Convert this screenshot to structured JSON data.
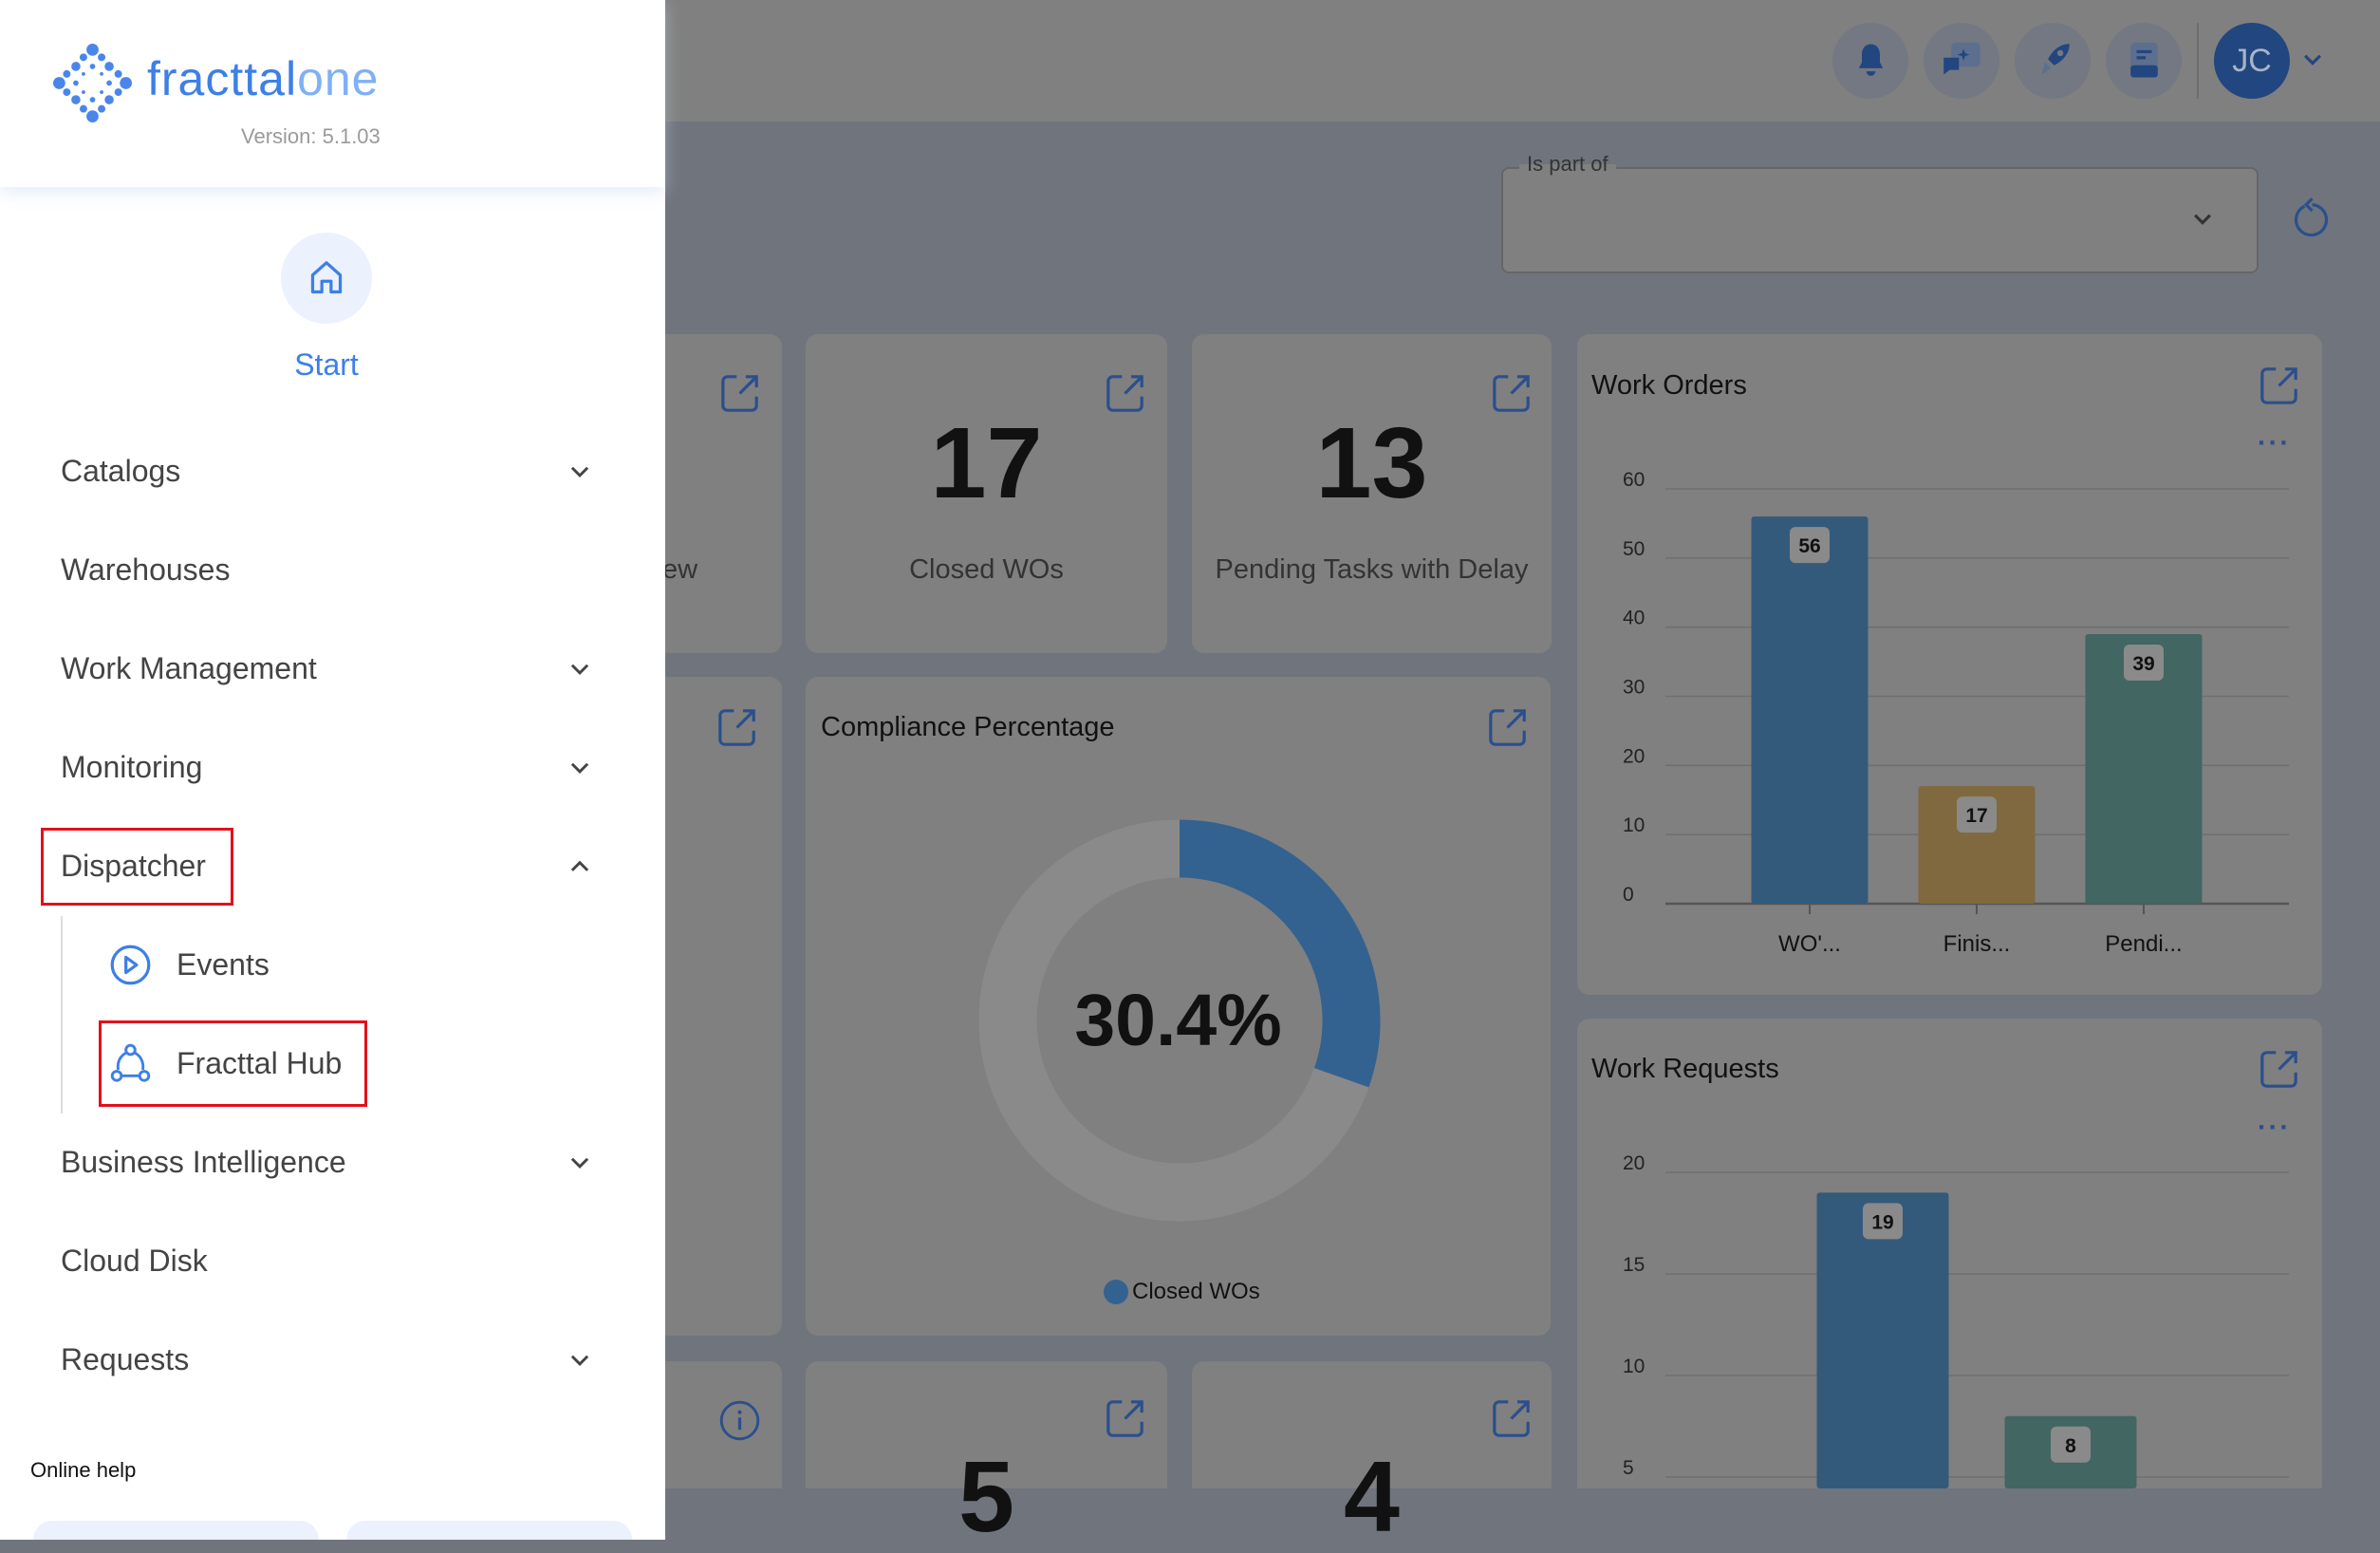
{
  "app": {
    "brand_main": "fracttal",
    "brand_accent": "one",
    "version": "Version: 5.1.03"
  },
  "sidebar": {
    "start_label": "Start",
    "items": [
      {
        "label": "Catalogs",
        "expandable": true
      },
      {
        "label": "Warehouses",
        "expandable": false
      },
      {
        "label": "Work Management",
        "expandable": true
      },
      {
        "label": "Monitoring",
        "expandable": true
      },
      {
        "label": "Dispatcher",
        "expandable": true,
        "expanded": true,
        "highlighted": true
      },
      {
        "label": "Business Intelligence",
        "expandable": true
      },
      {
        "label": "Cloud Disk",
        "expandable": false
      },
      {
        "label": "Requests",
        "expandable": true
      }
    ],
    "dispatcher_children": [
      {
        "label": "Events",
        "icon": "play-circle-icon"
      },
      {
        "label": "Fracttal Hub",
        "icon": "hub-network-icon",
        "highlighted": true
      }
    ],
    "online_help": "Online help"
  },
  "topbar": {
    "icons": [
      "bell-icon",
      "ai-chat-icon",
      "rocket-icon",
      "book-icon"
    ],
    "avatar_initials": "JC"
  },
  "filter": {
    "label": "Is part of",
    "value": ""
  },
  "cards": {
    "partial_label": "ew",
    "closed_wos": {
      "value": "17",
      "label": "Closed WOs"
    },
    "pending_tasks": {
      "value": "13",
      "label": "Pending Tasks with Delay"
    },
    "row3_b_value": "5",
    "row3_c_value": "4"
  },
  "colors": {
    "accent": "#3d7fe6",
    "highlight": "#e3101b",
    "bar_blue": "#335a7b",
    "bar_gold": "#80693f",
    "bar_green": "#426662"
  },
  "chart_data": [
    {
      "type": "pie",
      "title": "Compliance Percentage",
      "center_label": "30.4%",
      "values": [
        30.4,
        69.6
      ],
      "legend": [
        "Closed WOs"
      ]
    },
    {
      "type": "bar",
      "title": "Work Orders",
      "categories": [
        "WO'...",
        "Finis...",
        "Pendi..."
      ],
      "values": [
        56,
        17,
        39
      ],
      "ylim": [
        0,
        60
      ],
      "yticks": [
        0,
        10,
        20,
        30,
        40,
        50,
        60
      ],
      "grid": true
    },
    {
      "type": "bar",
      "title": "Work Requests",
      "values": [
        19,
        8
      ],
      "ylim": [
        0,
        20
      ],
      "yticks": [
        5,
        10,
        15,
        20
      ],
      "grid": true
    }
  ]
}
